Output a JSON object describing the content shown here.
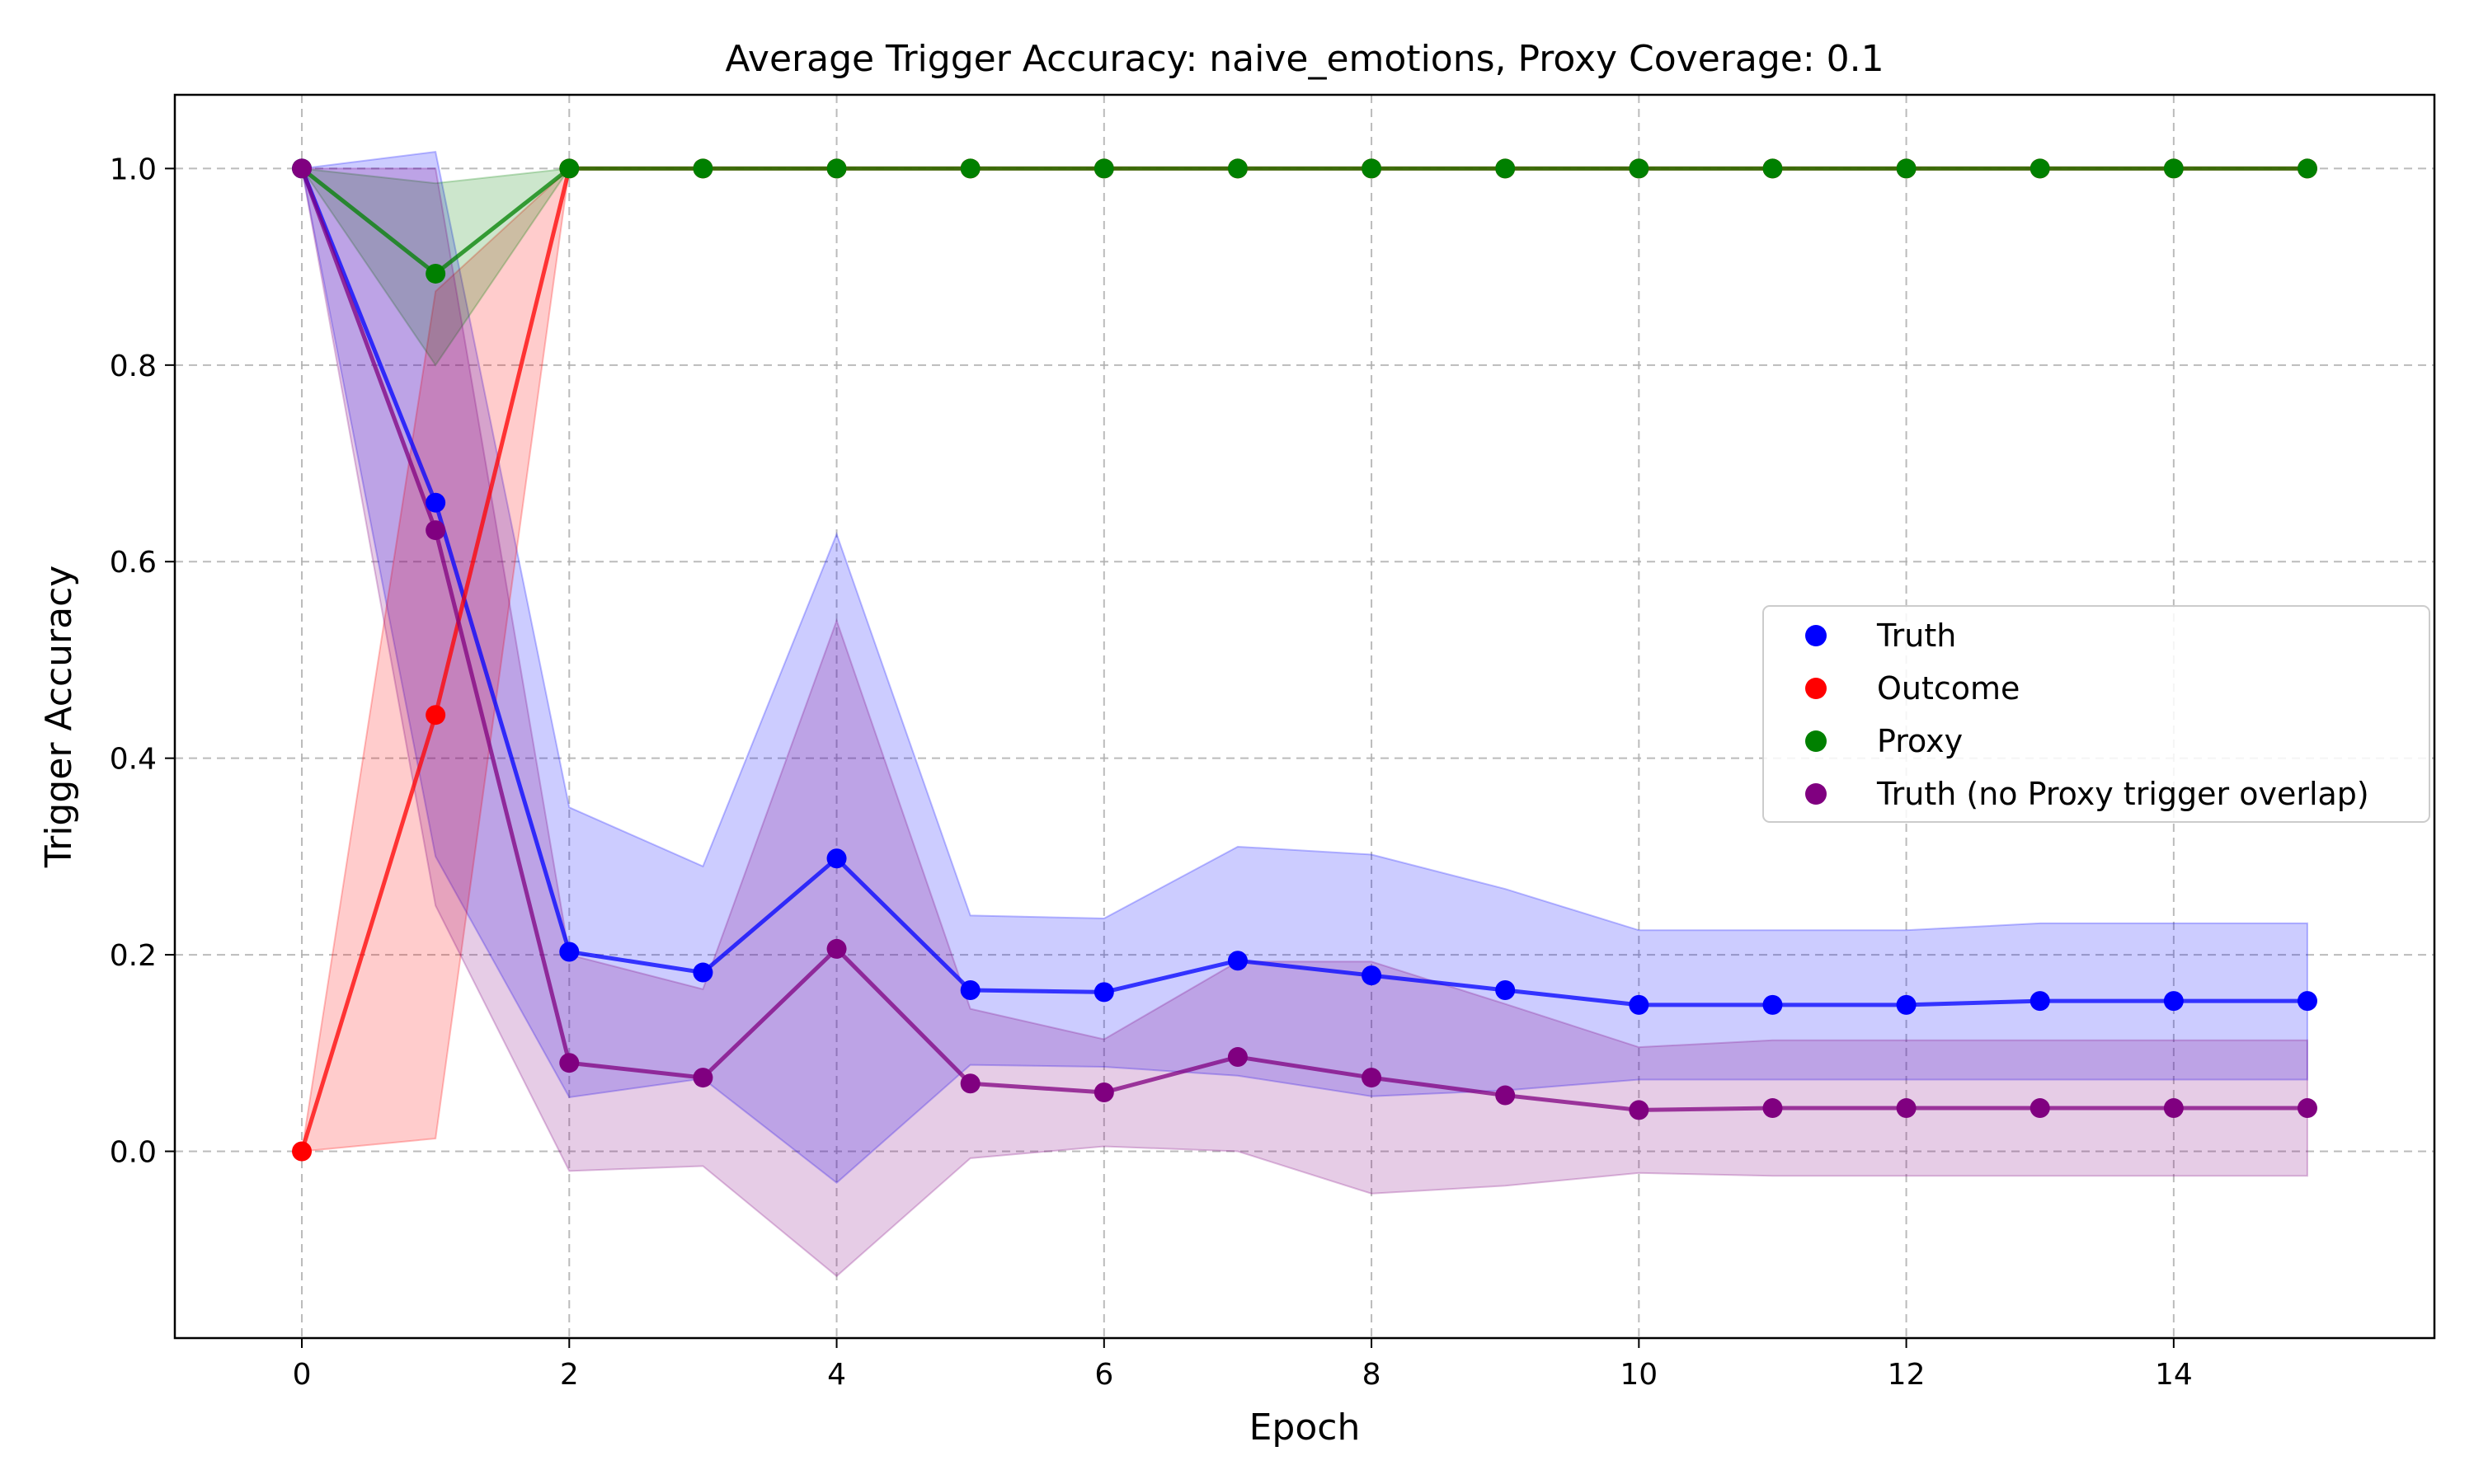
{
  "chart_data": {
    "type": "line",
    "title": "Average Trigger Accuracy: naive_emotions, Proxy Coverage: 0.1",
    "xlabel": "Epoch",
    "ylabel": "Trigger Accuracy",
    "xlim": [
      -0.95,
      15.95
    ],
    "ylim": [
      -0.19,
      1.075
    ],
    "xticks": [
      0,
      2,
      4,
      6,
      8,
      10,
      12,
      14
    ],
    "yticks": [
      0.0,
      0.2,
      0.4,
      0.6,
      0.8,
      1.0
    ],
    "xtick_labels": [
      "0",
      "2",
      "4",
      "6",
      "8",
      "10",
      "12",
      "14"
    ],
    "ytick_labels": [
      "0.0",
      "0.2",
      "0.4",
      "0.6",
      "0.8",
      "1.0"
    ],
    "grid": true,
    "legend_position": "center-right",
    "x": [
      0,
      1,
      2,
      3,
      4,
      5,
      6,
      7,
      8,
      9,
      10,
      11,
      12,
      13,
      14,
      15
    ],
    "series": [
      {
        "name": "Truth",
        "color": "#0000ff",
        "values": [
          1.0,
          0.66,
          0.203,
          0.182,
          0.298,
          0.164,
          0.162,
          0.194,
          0.179,
          0.164,
          0.149,
          0.149,
          0.149,
          0.153,
          0.153,
          0.153
        ],
        "band_upper": [
          1.0,
          1.017,
          0.35,
          0.29,
          0.628,
          0.24,
          0.237,
          0.31,
          0.302,
          0.267,
          0.225,
          0.225,
          0.225,
          0.232,
          0.232,
          0.232
        ],
        "band_lower": [
          1.0,
          0.3,
          0.055,
          0.074,
          -0.032,
          0.088,
          0.086,
          0.077,
          0.056,
          0.062,
          0.073,
          0.073,
          0.073,
          0.073,
          0.073,
          0.073
        ]
      },
      {
        "name": "Outcome",
        "color": "#ff0000",
        "values": [
          0.0,
          0.444,
          1.0,
          1.0,
          1.0,
          1.0,
          1.0,
          1.0,
          1.0,
          1.0,
          1.0,
          1.0,
          1.0,
          1.0,
          1.0,
          1.0
        ],
        "band_upper": [
          0.0,
          0.875,
          1.0,
          1.0,
          1.0,
          1.0,
          1.0,
          1.0,
          1.0,
          1.0,
          1.0,
          1.0,
          1.0,
          1.0,
          1.0,
          1.0
        ],
        "band_lower": [
          0.0,
          0.013,
          1.0,
          1.0,
          1.0,
          1.0,
          1.0,
          1.0,
          1.0,
          1.0,
          1.0,
          1.0,
          1.0,
          1.0,
          1.0,
          1.0
        ]
      },
      {
        "name": "Proxy",
        "color": "#008000",
        "values": [
          1.0,
          0.893,
          1.0,
          1.0,
          1.0,
          1.0,
          1.0,
          1.0,
          1.0,
          1.0,
          1.0,
          1.0,
          1.0,
          1.0,
          1.0,
          1.0
        ],
        "band_upper": [
          1.0,
          0.985,
          1.0,
          1.0,
          1.0,
          1.0,
          1.0,
          1.0,
          1.0,
          1.0,
          1.0,
          1.0,
          1.0,
          1.0,
          1.0,
          1.0
        ],
        "band_lower": [
          1.0,
          0.8,
          1.0,
          1.0,
          1.0,
          1.0,
          1.0,
          1.0,
          1.0,
          1.0,
          1.0,
          1.0,
          1.0,
          1.0,
          1.0,
          1.0
        ]
      },
      {
        "name": "Truth (no Proxy trigger overlap)",
        "color": "#800080",
        "values": [
          1.0,
          0.632,
          0.09,
          0.075,
          0.206,
          0.069,
          0.06,
          0.096,
          0.075,
          0.057,
          0.042,
          0.044,
          0.044,
          0.044,
          0.044,
          0.044
        ],
        "band_upper": [
          1.0,
          1.0,
          0.2,
          0.165,
          0.54,
          0.145,
          0.114,
          0.193,
          0.193,
          0.15,
          0.106,
          0.113,
          0.113,
          0.113,
          0.113,
          0.113
        ],
        "band_lower": [
          1.0,
          0.25,
          -0.02,
          -0.015,
          -0.127,
          -0.007,
          0.005,
          0.0,
          -0.043,
          -0.035,
          -0.022,
          -0.025,
          -0.025,
          -0.025,
          -0.025,
          -0.025
        ]
      }
    ]
  }
}
